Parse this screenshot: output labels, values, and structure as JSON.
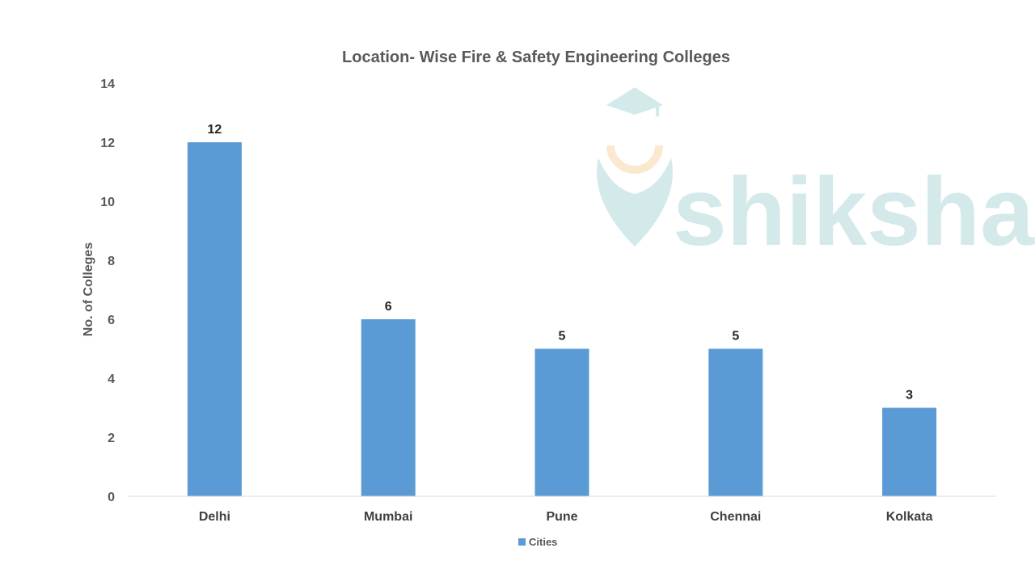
{
  "watermark": {
    "text": "shiksha"
  },
  "colors": {
    "bar": "#5b9bd5",
    "axis": "#d9d9d9",
    "watermark": "#d4e9ea",
    "watermark_accent": "#fbe9cf"
  },
  "chart_data": {
    "type": "bar",
    "title": "Location- Wise Fire & Safety Engineering Colleges",
    "xlabel": "",
    "ylabel": "No. of Colleges",
    "categories": [
      "Delhi",
      "Mumbai",
      "Pune",
      "Chennai",
      "Kolkata"
    ],
    "series": [
      {
        "name": "Cities",
        "values": [
          12,
          6,
          5,
          5,
          3
        ]
      }
    ],
    "ylim": [
      0,
      14
    ],
    "yticks": [
      0,
      2,
      4,
      6,
      8,
      10,
      12,
      14
    ],
    "data_labels": true,
    "grid": false,
    "legend": "bottom"
  }
}
